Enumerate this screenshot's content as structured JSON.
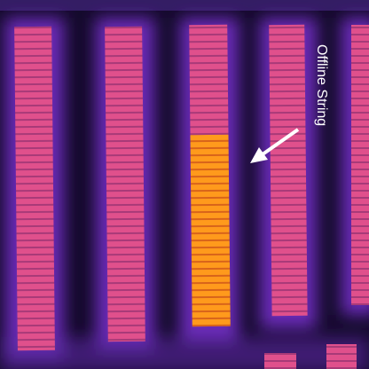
{
  "annotation": "Offline String"
}
